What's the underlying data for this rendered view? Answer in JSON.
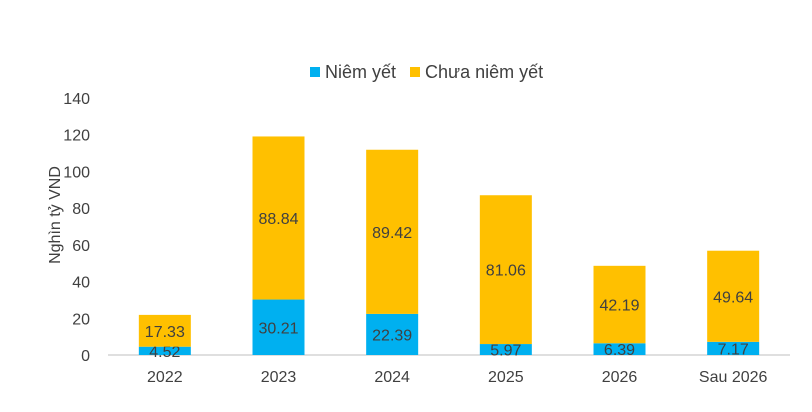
{
  "colors": {
    "listed": "#00B0F0",
    "unlisted": "#FFC000",
    "text": "#404040",
    "axis": "#BFBFBF"
  },
  "chart_data": {
    "type": "bar",
    "stacked": true,
    "title": "",
    "xlabel": "",
    "ylabel": "Nghìn tỷ VND",
    "ylim": [
      0,
      140
    ],
    "yticks": [
      0,
      20,
      40,
      60,
      80,
      100,
      120,
      140
    ],
    "categories": [
      "2022",
      "2023",
      "2024",
      "2025",
      "2026",
      "Sau 2026"
    ],
    "series": [
      {
        "name": "Niêm yết",
        "values": [
          4.52,
          30.21,
          22.39,
          5.97,
          6.39,
          7.17
        ]
      },
      {
        "name": "Chưa niêm yết",
        "values": [
          17.33,
          88.84,
          89.42,
          81.06,
          42.19,
          49.64
        ]
      }
    ],
    "legend_position": "top",
    "grid": false
  }
}
